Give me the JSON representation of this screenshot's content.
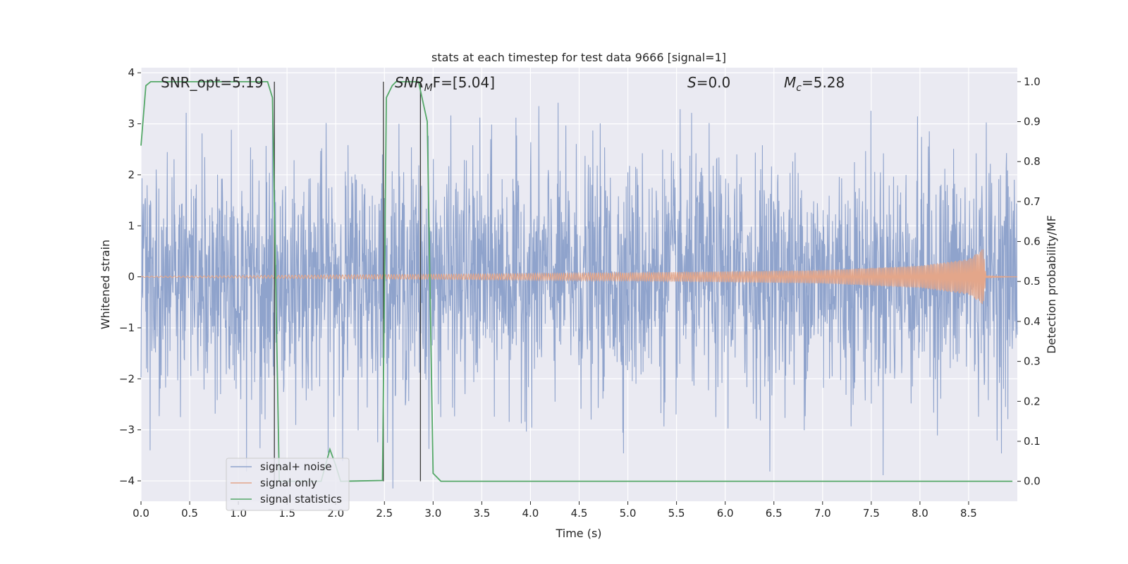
{
  "chart_data": {
    "type": "line",
    "title": "stats at each timestep for test data 9666 [signal=1]",
    "xlabel": "Time (s)",
    "ylabel_left": "Whitened strain",
    "ylabel_right": "Detection probability/MF",
    "xlim": [
      0,
      9
    ],
    "ylim_left": [
      -4.4,
      4.1
    ],
    "ylim_right": [
      -0.05,
      1.035
    ],
    "x_ticks": [
      0,
      0.5,
      1,
      1.5,
      2,
      2.5,
      3,
      3.5,
      4,
      4.5,
      5,
      5.5,
      6,
      6.5,
      7,
      7.5,
      8,
      8.5
    ],
    "x_tick_labels": [
      "0.0",
      "0.5",
      "1.0",
      "1.5",
      "2.0",
      "2.5",
      "3.0",
      "3.5",
      "4.0",
      "4.5",
      "5.0",
      "5.5",
      "6.0",
      "6.5",
      "7.0",
      "7.5",
      "8.0",
      "8.5"
    ],
    "y_left_ticks": [
      4,
      3,
      2,
      1,
      0,
      -1,
      -2,
      -3,
      -4
    ],
    "y_left_tick_labels": [
      "4",
      "3",
      "2",
      "1",
      "0",
      "−1",
      "−2",
      "−3",
      "−4"
    ],
    "y_right_ticks": [
      1.0,
      0.9,
      0.8,
      0.7,
      0.6,
      0.5,
      0.4,
      0.3,
      0.2,
      0.1,
      0.0
    ],
    "y_right_tick_labels": [
      "1.0",
      "0.9",
      "0.8",
      "0.7",
      "0.6",
      "0.5",
      "0.4",
      "0.3",
      "0.2",
      "0.1",
      "0.0"
    ],
    "grid": true,
    "legend_placement": "lower-left",
    "annotations": {
      "snr_opt": {
        "prefix": "SNR_opt=",
        "value": "5.19"
      },
      "snr_mf": {
        "base": "SNR",
        "sub": "M",
        "suffix": "F=[5.04]"
      },
      "s_stat": {
        "base": "S",
        "suffix": "=0.0"
      },
      "mc": {
        "base": "M",
        "sub": "c",
        "suffix": "=5.28"
      }
    },
    "vertical_markers": [
      {
        "x": 1.37,
        "ylow": 0.0,
        "yhigh": 1.0
      },
      {
        "x": 2.49,
        "ylow": 0.0,
        "yhigh": 1.0
      },
      {
        "x": 2.87,
        "ylow": 0.0,
        "yhigh": 1.0
      }
    ],
    "series": [
      {
        "name": "signal+ noise",
        "color": "#8fa3cc",
        "axis": "left",
        "description_values": {
          "typical_amplitude": 1.5,
          "max_abs": 3.9,
          "sampled": true
        }
      },
      {
        "name": "signal only",
        "color": "#e3a68a",
        "axis": "left",
        "envelope": [
          {
            "x": 0.0,
            "amp": 0.01
          },
          {
            "x": 3.0,
            "amp": 0.05
          },
          {
            "x": 5.0,
            "amp": 0.08
          },
          {
            "x": 7.0,
            "amp": 0.13
          },
          {
            "x": 8.0,
            "amp": 0.22
          },
          {
            "x": 8.5,
            "amp": 0.35
          },
          {
            "x": 8.65,
            "amp": 0.55
          },
          {
            "x": 8.68,
            "amp": 0.02
          },
          {
            "x": 9.0,
            "amp": 0.0
          }
        ]
      },
      {
        "name": "signal statistics",
        "color": "#55a868",
        "axis": "right",
        "points": [
          [
            0.0,
            0.84
          ],
          [
            0.05,
            0.99
          ],
          [
            0.1,
            1.0
          ],
          [
            1.3,
            1.0
          ],
          [
            1.35,
            0.96
          ],
          [
            1.42,
            0.0
          ],
          [
            1.85,
            0.0
          ],
          [
            1.94,
            0.08
          ],
          [
            2.0,
            0.04
          ],
          [
            2.05,
            0.0
          ],
          [
            2.48,
            0.002
          ],
          [
            2.52,
            0.96
          ],
          [
            2.58,
            0.99
          ],
          [
            2.62,
            1.0
          ],
          [
            2.85,
            1.0
          ],
          [
            2.94,
            0.9
          ],
          [
            3.0,
            0.02
          ],
          [
            3.08,
            0.0
          ],
          [
            8.95,
            0.0
          ]
        ]
      }
    ]
  }
}
